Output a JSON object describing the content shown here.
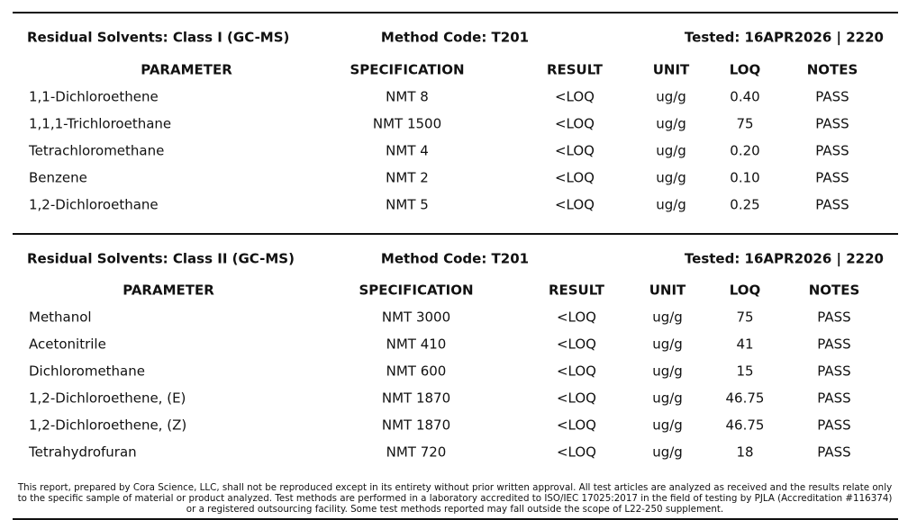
{
  "sections": [
    {
      "title": "Residual Solvents: Class I (GC-MS)",
      "method": "Method Code: T201",
      "tested": "Tested: 16APR2026 | 2220",
      "columns": [
        "PARAMETER",
        "SPECIFICATION",
        "RESULT",
        "UNIT",
        "LOQ",
        "NOTES"
      ],
      "rows": [
        [
          "1,1-Dichloroethene",
          "NMT 8",
          "<LOQ",
          "ug/g",
          "0.40",
          "PASS"
        ],
        [
          "1,1,1-Trichloroethane",
          "NMT 1500",
          "<LOQ",
          "ug/g",
          "75",
          "PASS"
        ],
        [
          "Tetrachloromethane",
          "NMT 4",
          "<LOQ",
          "ug/g",
          "0.20",
          "PASS"
        ],
        [
          "Benzene",
          "NMT 2",
          "<LOQ",
          "ug/g",
          "0.10",
          "PASS"
        ],
        [
          "1,2-Dichloroethane",
          "NMT 5",
          "<LOQ",
          "ug/g",
          "0.25",
          "PASS"
        ]
      ]
    },
    {
      "title": "Residual Solvents: Class II (GC-MS)",
      "method": "Method Code: T201",
      "tested": "Tested: 16APR2026 | 2220",
      "columns": [
        "PARAMETER",
        "SPECIFICATION",
        "RESULT",
        "UNIT",
        "LOQ",
        "NOTES"
      ],
      "rows": [
        [
          "Methanol",
          "NMT 3000",
          "<LOQ",
          "ug/g",
          "75",
          "PASS"
        ],
        [
          "Acetonitrile",
          "NMT 410",
          "<LOQ",
          "ug/g",
          "41",
          "PASS"
        ],
        [
          "Dichloromethane",
          "NMT 600",
          "<LOQ",
          "ug/g",
          "15",
          "PASS"
        ],
        [
          "1,2-Dichloroethene, (E)",
          "NMT 1870",
          "<LOQ",
          "ug/g",
          "46.75",
          "PASS"
        ],
        [
          "1,2-Dichloroethene, (Z)",
          "NMT 1870",
          "<LOQ",
          "ug/g",
          "46.75",
          "PASS"
        ],
        [
          "Tetrahydrofuran",
          "NMT 720",
          "<LOQ",
          "ug/g",
          "18",
          "PASS"
        ]
      ]
    }
  ],
  "footer": [
    "This report, prepared by Cora Science, LLC, shall not be reproduced except in its entirety without prior written approval. All test articles are analyzed as received and the results relate only",
    "to the specific sample of material or product analyzed. Test methods are performed in a laboratory accredited to ISO/IEC 17025:2017 in the field of testing by PJLA (Accreditation #116374)",
    "or a registered outsourcing facility. Some test methods reported may fall outside the scope of L22-250 supplement."
  ]
}
